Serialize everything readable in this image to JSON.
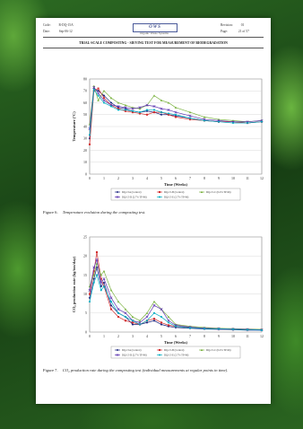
{
  "header": {
    "code_label": "Code:",
    "code_value": "R-DQ-15A",
    "date_label": "Date:",
    "date_value": "Sep-06-12",
    "revision_label": "Revision:",
    "revision_value": "01",
    "page_label": "Page:",
    "page_value": "21 of 57",
    "logo_text": "OWS",
    "logo_subtitle": "Organic Waste Systems"
  },
  "document_title": "TRIAL-SCALE COMPOSTING - SIEVING TEST FOR MEASUREMENT OF BIODEGRADATION",
  "figure6": {
    "caption_num": "Figure 6.",
    "caption_text": "Temperature evolution during the composting test."
  },
  "figure7": {
    "caption_num": "Figure 7.",
    "caption_text": "CO₂ production rate during the composting test (individual measurements at regular points in time)."
  },
  "chart_data": [
    {
      "type": "line",
      "xlabel": "Time (Weeks)",
      "ylabel": "Temperature (°C)",
      "xlim": [
        0,
        12
      ],
      "ylim": [
        0,
        80
      ],
      "xticks": [
        0,
        1,
        2,
        3,
        4,
        5,
        6,
        7,
        8,
        9,
        10,
        11,
        12
      ],
      "yticks": [
        0,
        10,
        20,
        30,
        40,
        50,
        60,
        70,
        80
      ],
      "grid": true,
      "legend_position": "bottom",
      "series": [
        {
          "name": "DQ-15A (Control)",
          "color": "#1a237e",
          "marker": "diamond",
          "x": [
            0,
            0.3,
            0.6,
            1,
            1.5,
            2,
            2.5,
            3,
            3.5,
            4,
            4.5,
            5,
            5.5,
            6,
            7,
            8,
            9,
            10,
            11,
            12
          ],
          "values": [
            30,
            72,
            70,
            66,
            60,
            56,
            55,
            53,
            52,
            53,
            52,
            50,
            50,
            49,
            47,
            45,
            44,
            44,
            43,
            44
          ]
        },
        {
          "name": "DQ-15-B (Control)",
          "color": "#d32f2f",
          "marker": "square",
          "x": [
            0,
            0.3,
            0.6,
            1,
            1.5,
            2,
            2.5,
            3,
            3.5,
            4,
            4.5,
            5,
            5.5,
            6,
            7,
            8,
            9,
            10,
            11,
            12
          ],
          "values": [
            25,
            70,
            72,
            64,
            58,
            55,
            53,
            52,
            51,
            50,
            52,
            52,
            50,
            48,
            46,
            45,
            44,
            44,
            43,
            44
          ]
        },
        {
          "name": "DQ-15-C (0.2% TP-96)",
          "color": "#7cb342",
          "marker": "triangle",
          "x": [
            0,
            0.3,
            0.6,
            1,
            1.5,
            2,
            2.5,
            3,
            3.5,
            4,
            4.5,
            5,
            5.5,
            6,
            7,
            8,
            9,
            10,
            11,
            12
          ],
          "values": [
            42,
            74,
            62,
            70,
            64,
            60,
            58,
            56,
            55,
            58,
            66,
            62,
            60,
            56,
            52,
            48,
            46,
            45,
            44,
            45
          ]
        },
        {
          "name": "DQ-15-D (2.7% TP-96)",
          "color": "#5e35b1",
          "marker": "x",
          "x": [
            0,
            0.3,
            0.6,
            1,
            1.5,
            2,
            2.5,
            3,
            3.5,
            4,
            4.5,
            5,
            5.5,
            6,
            7,
            8,
            9,
            10,
            11,
            12
          ],
          "values": [
            38,
            73,
            68,
            62,
            58,
            57,
            56,
            55,
            56,
            58,
            57,
            55,
            54,
            52,
            49,
            46,
            45,
            44,
            44,
            45
          ]
        },
        {
          "name": "DQ-15-E (2.7% TP-96)",
          "color": "#00acc1",
          "marker": "star",
          "x": [
            0,
            0.3,
            0.6,
            1,
            1.5,
            2,
            2.5,
            3,
            3.5,
            4,
            4.5,
            5,
            5.5,
            6,
            7,
            8,
            9,
            10,
            11,
            12
          ],
          "values": [
            33,
            71,
            66,
            60,
            57,
            54,
            54,
            53,
            52,
            54,
            54,
            52,
            51,
            50,
            47,
            45,
            44,
            43,
            43,
            44
          ]
        }
      ]
    },
    {
      "type": "line",
      "xlabel": "Time (Weeks)",
      "ylabel": "CO₂ production rate (kg/ton/day)",
      "xlim": [
        0,
        12
      ],
      "ylim": [
        0,
        25
      ],
      "xticks": [
        0,
        1,
        2,
        3,
        4,
        5,
        6,
        7,
        8,
        9,
        10,
        11,
        12
      ],
      "yticks": [
        0,
        5,
        10,
        15,
        20,
        25
      ],
      "grid": true,
      "legend_position": "bottom",
      "series": [
        {
          "name": "DQ-15A (Control)",
          "color": "#1a237e",
          "marker": "diamond",
          "x": [
            0,
            0.3,
            0.5,
            0.8,
            1,
            1.5,
            2,
            2.5,
            3,
            3.5,
            4,
            4.5,
            5,
            5.5,
            6,
            7,
            8,
            9,
            10,
            11,
            12
          ],
          "values": [
            9,
            14,
            17,
            12,
            13,
            7,
            5,
            4,
            2,
            2,
            2.5,
            3,
            2,
            1.5,
            1.2,
            1,
            0.8,
            0.7,
            0.6,
            0.5,
            0.5
          ]
        },
        {
          "name": "DQ-15-B (Control)",
          "color": "#d32f2f",
          "marker": "square",
          "x": [
            0,
            0.3,
            0.5,
            0.8,
            1,
            1.5,
            2,
            2.5,
            3,
            3.5,
            4,
            4.5,
            5,
            5.5,
            6,
            7,
            8,
            9,
            10,
            11,
            12
          ],
          "values": [
            10,
            16,
            21,
            14,
            12,
            6,
            4,
            3,
            2.5,
            2,
            3,
            3.5,
            2.5,
            1.8,
            1.5,
            1.2,
            1,
            0.8,
            0.7,
            0.6,
            0.6
          ]
        },
        {
          "name": "DQ-15-C (0.2% TP-96)",
          "color": "#7cb342",
          "marker": "triangle",
          "x": [
            0,
            0.3,
            0.5,
            0.8,
            1,
            1.5,
            2,
            2.5,
            3,
            3.5,
            4,
            4.5,
            5,
            5.5,
            6,
            7,
            8,
            9,
            10,
            11,
            12
          ],
          "values": [
            12,
            15,
            18,
            15,
            16,
            11,
            8,
            6,
            4,
            3,
            5,
            8,
            6,
            4,
            2,
            1.5,
            1.2,
            1,
            0.9,
            0.8,
            0.7
          ]
        },
        {
          "name": "DQ-15-D (2.7% TP-96)",
          "color": "#5e35b1",
          "marker": "x",
          "x": [
            0,
            0.3,
            0.5,
            0.8,
            1,
            1.5,
            2,
            2.5,
            3,
            3.5,
            4,
            4.5,
            5,
            5.5,
            6,
            7,
            8,
            9,
            10,
            11,
            12
          ],
          "values": [
            11,
            17,
            19,
            13,
            14,
            9,
            6,
            5,
            3,
            2.5,
            4,
            7,
            6,
            3,
            1.8,
            1.3,
            1,
            0.9,
            0.8,
            0.7,
            0.6
          ]
        },
        {
          "name": "DQ-15-E (2.7% TP-96)",
          "color": "#00acc1",
          "marker": "star",
          "x": [
            0,
            0.3,
            0.5,
            0.8,
            1,
            1.5,
            2,
            2.5,
            3,
            3.5,
            4,
            4.5,
            5,
            5.5,
            6,
            7,
            8,
            9,
            10,
            11,
            12
          ],
          "values": [
            8,
            13,
            15,
            11,
            12,
            8,
            5,
            4,
            3,
            2,
            3,
            5,
            4,
            2.5,
            1.5,
            1.1,
            0.9,
            0.8,
            0.7,
            0.6,
            0.5
          ]
        }
      ]
    }
  ]
}
